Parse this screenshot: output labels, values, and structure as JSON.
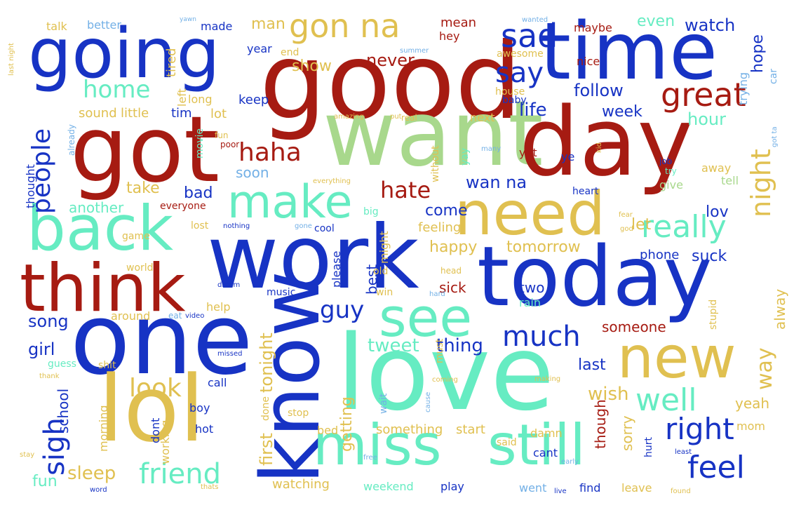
{
  "palette": {
    "red": "#a61b12",
    "blue": "#1733c4",
    "teal": "#66ecc2",
    "gold": "#e0c050",
    "sage": "#a8d88c",
    "sky": "#73b0e6",
    "orange": "#d98c30"
  },
  "words": [
    {
      "text": "good",
      "color": "red"
    },
    {
      "text": "got",
      "color": "red"
    },
    {
      "text": "want",
      "color": "sage"
    },
    {
      "text": "day",
      "color": "red"
    },
    {
      "text": "time",
      "color": "blue"
    },
    {
      "text": "going",
      "color": "blue"
    },
    {
      "text": "work",
      "color": "blue"
    },
    {
      "text": "today",
      "color": "blue"
    },
    {
      "text": "love",
      "color": "teal"
    },
    {
      "text": "one",
      "color": "blue"
    },
    {
      "text": "lol",
      "color": "gold"
    },
    {
      "text": "know",
      "color": "blue"
    },
    {
      "text": "back",
      "color": "teal"
    },
    {
      "text": "think",
      "color": "red"
    },
    {
      "text": "need",
      "color": "gold"
    },
    {
      "text": "miss",
      "color": "teal"
    },
    {
      "text": "still",
      "color": "teal"
    },
    {
      "text": "new",
      "color": "gold"
    },
    {
      "text": "make",
      "color": "teal"
    },
    {
      "text": "see",
      "color": "teal"
    },
    {
      "text": "gon na",
      "color": "gold"
    },
    {
      "text": "sad",
      "color": "blue"
    },
    {
      "text": "say",
      "color": "blue"
    },
    {
      "text": "great",
      "color": "red"
    },
    {
      "text": "home",
      "color": "teal"
    },
    {
      "text": "people",
      "color": "blue"
    },
    {
      "text": "haha",
      "color": "red"
    },
    {
      "text": "hate",
      "color": "red"
    },
    {
      "text": "really",
      "color": "teal"
    },
    {
      "text": "night",
      "color": "gold"
    },
    {
      "text": "right",
      "color": "blue"
    },
    {
      "text": "feel",
      "color": "blue"
    },
    {
      "text": "well",
      "color": "teal"
    },
    {
      "text": "friend",
      "color": "teal"
    },
    {
      "text": "sigh",
      "color": "blue"
    },
    {
      "text": "look",
      "color": "gold"
    },
    {
      "text": "much",
      "color": "blue"
    },
    {
      "text": "guy",
      "color": "blue"
    },
    {
      "text": "life",
      "color": "blue"
    },
    {
      "text": "follow",
      "color": "blue"
    },
    {
      "text": "week",
      "color": "blue"
    },
    {
      "text": "wan na",
      "color": "blue"
    },
    {
      "text": "happy",
      "color": "gold"
    },
    {
      "text": "tomorrow",
      "color": "gold"
    },
    {
      "text": "tweet",
      "color": "teal"
    },
    {
      "text": "thing",
      "color": "blue"
    },
    {
      "text": "way",
      "color": "gold"
    },
    {
      "text": "wish",
      "color": "gold"
    },
    {
      "text": "last",
      "color": "blue"
    },
    {
      "text": "song",
      "color": "blue"
    },
    {
      "text": "girl",
      "color": "blue"
    },
    {
      "text": "sleep",
      "color": "gold"
    },
    {
      "text": "fun",
      "color": "teal"
    },
    {
      "text": "tonight",
      "color": "gold"
    },
    {
      "text": "first",
      "color": "gold"
    },
    {
      "text": "watch",
      "color": "blue"
    },
    {
      "text": "hope",
      "color": "blue"
    },
    {
      "text": "never",
      "color": "red"
    },
    {
      "text": "show",
      "color": "gold"
    },
    {
      "text": "man",
      "color": "gold"
    },
    {
      "text": "even",
      "color": "teal"
    },
    {
      "text": "hour",
      "color": "teal"
    },
    {
      "text": "let",
      "color": "gold"
    },
    {
      "text": "lov",
      "color": "blue"
    },
    {
      "text": "come",
      "color": "blue"
    },
    {
      "text": "feeling",
      "color": "gold"
    },
    {
      "text": "phone",
      "color": "blue"
    },
    {
      "text": "suck",
      "color": "blue"
    },
    {
      "text": "sorry",
      "color": "gold"
    },
    {
      "text": "someone",
      "color": "red"
    },
    {
      "text": "yeah",
      "color": "gold"
    },
    {
      "text": "alway",
      "color": "gold"
    },
    {
      "text": "take",
      "color": "gold"
    },
    {
      "text": "bad",
      "color": "blue"
    },
    {
      "text": "another",
      "color": "teal"
    },
    {
      "text": "soon",
      "color": "sky"
    },
    {
      "text": "getting",
      "color": "gold"
    },
    {
      "text": "sick",
      "color": "red"
    },
    {
      "text": "best",
      "color": "blue"
    },
    {
      "text": "school",
      "color": "blue"
    },
    {
      "text": "though",
      "color": "red"
    },
    {
      "text": "watching",
      "color": "gold"
    },
    {
      "text": "start",
      "color": "gold"
    },
    {
      "text": "something",
      "color": "gold"
    },
    {
      "text": "keep",
      "color": "blue"
    },
    {
      "text": "lot",
      "color": "gold"
    },
    {
      "text": "tim",
      "color": "blue"
    },
    {
      "text": "little",
      "color": "gold"
    },
    {
      "text": "sound",
      "color": "gold"
    },
    {
      "text": "long",
      "color": "gold"
    },
    {
      "text": "left",
      "color": "gold"
    },
    {
      "text": "tired",
      "color": "gold"
    },
    {
      "text": "made",
      "color": "blue"
    },
    {
      "text": "year",
      "color": "blue"
    },
    {
      "text": "end",
      "color": "gold"
    },
    {
      "text": "mean",
      "color": "red"
    },
    {
      "text": "hey",
      "color": "red"
    },
    {
      "text": "maybe",
      "color": "red"
    },
    {
      "text": "nice",
      "color": "red"
    },
    {
      "text": "awesome",
      "color": "gold"
    },
    {
      "text": "house",
      "color": "gold"
    },
    {
      "text": "baby",
      "color": "blue"
    },
    {
      "text": "next",
      "color": "gold"
    },
    {
      "text": "without",
      "color": "gold"
    },
    {
      "text": "yet",
      "color": "red"
    },
    {
      "text": "ye",
      "color": "blue"
    },
    {
      "text": "trying",
      "color": "sky"
    },
    {
      "text": "heart",
      "color": "blue"
    },
    {
      "text": "away",
      "color": "gold"
    },
    {
      "text": "tell",
      "color": "sage"
    },
    {
      "text": "give",
      "color": "sage"
    },
    {
      "text": "two",
      "color": "blue"
    },
    {
      "text": "rain",
      "color": "teal"
    },
    {
      "text": "stupid",
      "color": "gold"
    },
    {
      "text": "hurt",
      "color": "blue"
    },
    {
      "text": "mom",
      "color": "gold"
    },
    {
      "text": "damn",
      "color": "gold"
    },
    {
      "text": "said",
      "color": "gold"
    },
    {
      "text": "cant",
      "color": "blue"
    },
    {
      "text": "find",
      "color": "blue"
    },
    {
      "text": "leave",
      "color": "gold"
    },
    {
      "text": "went",
      "color": "sky"
    },
    {
      "text": "play",
      "color": "blue"
    },
    {
      "text": "weekend",
      "color": "teal"
    },
    {
      "text": "bed",
      "color": "gold"
    },
    {
      "text": "stop",
      "color": "gold"
    },
    {
      "text": "wait",
      "color": "sky"
    },
    {
      "text": "must",
      "color": "gold"
    },
    {
      "text": "please",
      "color": "blue"
    },
    {
      "text": "might",
      "color": "gold"
    },
    {
      "text": "old",
      "color": "gold"
    },
    {
      "text": "win",
      "color": "gold"
    },
    {
      "text": "music",
      "color": "blue"
    },
    {
      "text": "help",
      "color": "gold"
    },
    {
      "text": "around",
      "color": "gold"
    },
    {
      "text": "done",
      "color": "gold"
    },
    {
      "text": "call",
      "color": "blue"
    },
    {
      "text": "boy",
      "color": "blue"
    },
    {
      "text": "hot",
      "color": "blue"
    },
    {
      "text": "dont",
      "color": "blue"
    },
    {
      "text": "working",
      "color": "gold"
    },
    {
      "text": "morning",
      "color": "gold"
    },
    {
      "text": "shit",
      "color": "gold"
    },
    {
      "text": "guess",
      "color": "teal"
    },
    {
      "text": "world",
      "color": "gold"
    },
    {
      "text": "game",
      "color": "gold"
    },
    {
      "text": "lost",
      "color": "gold"
    },
    {
      "text": "everyone",
      "color": "red"
    },
    {
      "text": "cool",
      "color": "blue"
    },
    {
      "text": "big",
      "color": "teal"
    },
    {
      "text": "movie",
      "color": "teal"
    },
    {
      "text": "fun",
      "color": "gold"
    },
    {
      "text": "poor",
      "color": "red"
    },
    {
      "text": "already",
      "color": "sky"
    },
    {
      "text": "thought",
      "color": "blue"
    },
    {
      "text": "talk",
      "color": "gold"
    },
    {
      "text": "better",
      "color": "sky"
    },
    {
      "text": "yay",
      "color": "teal"
    },
    {
      "text": "job",
      "color": "blue"
    },
    {
      "text": "try",
      "color": "teal"
    },
    {
      "text": "car",
      "color": "sky"
    },
    {
      "text": "eat",
      "color": "sky"
    },
    {
      "text": "video",
      "color": "blue"
    },
    {
      "text": "dream",
      "color": "blue"
    },
    {
      "text": "missed",
      "color": "blue"
    },
    {
      "text": "thank",
      "color": "gold"
    },
    {
      "text": "stay",
      "color": "gold"
    },
    {
      "text": "word",
      "color": "blue"
    },
    {
      "text": "live",
      "color": "blue"
    },
    {
      "text": "found",
      "color": "gold"
    },
    {
      "text": "least",
      "color": "blue"
    },
    {
      "text": "thats",
      "color": "gold"
    },
    {
      "text": "cause",
      "color": "sky"
    },
    {
      "text": "coming",
      "color": "gold"
    },
    {
      "text": "making",
      "color": "gold"
    },
    {
      "text": "hard",
      "color": "sky"
    },
    {
      "text": "early",
      "color": "sky"
    },
    {
      "text": "head",
      "color": "gold"
    },
    {
      "text": "many",
      "color": "sky"
    },
    {
      "text": "nothing",
      "color": "blue"
    },
    {
      "text": "gone",
      "color": "sky"
    },
    {
      "text": "free",
      "color": "sky"
    },
    {
      "text": "put",
      "color": "gold"
    },
    {
      "text": "real",
      "color": "gold"
    },
    {
      "text": "amazing",
      "color": "gold"
    },
    {
      "text": "everything",
      "color": "gold"
    },
    {
      "text": "last night",
      "color": "gold"
    },
    {
      "text": "summer",
      "color": "sky"
    },
    {
      "text": "wanted",
      "color": "sky"
    },
    {
      "text": "yawn",
      "color": "sky"
    },
    {
      "text": "kid",
      "color": "gold"
    },
    {
      "text": "god",
      "color": "gold"
    },
    {
      "text": "fear",
      "color": "gold"
    },
    {
      "text": "got ta",
      "color": "sky"
    }
  ]
}
